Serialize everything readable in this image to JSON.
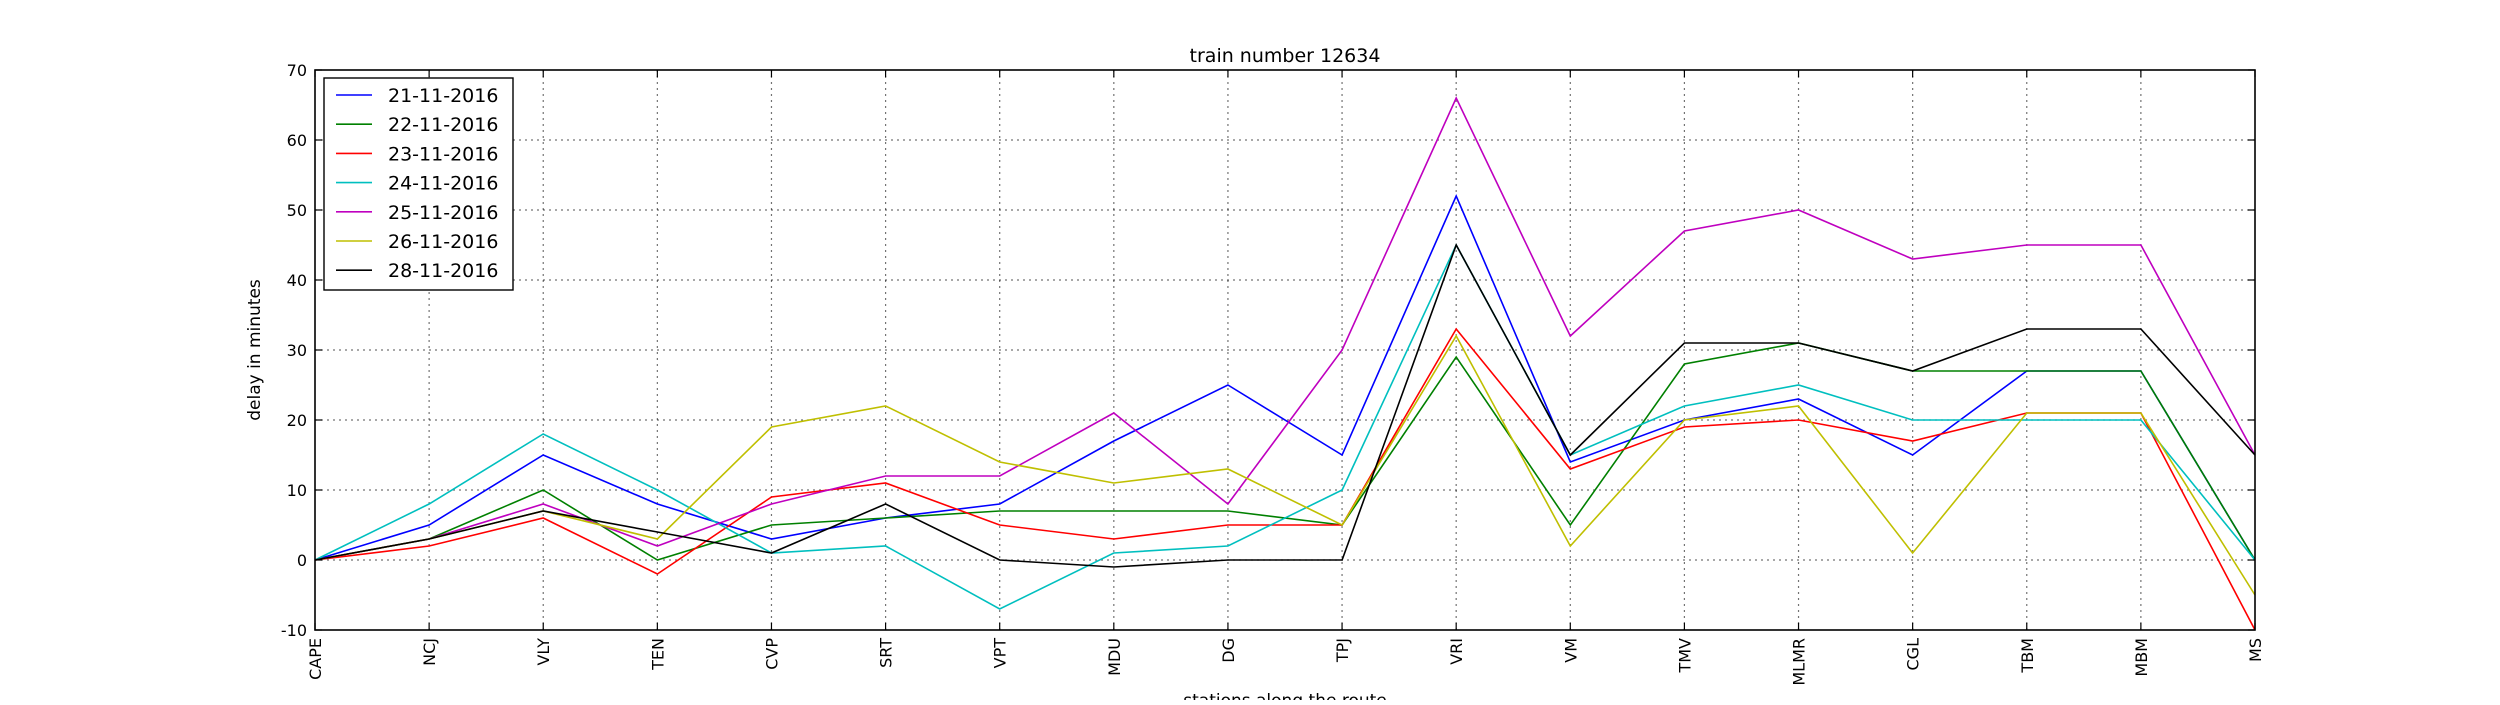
{
  "chart_data": {
    "type": "line",
    "title": "train number 12634",
    "xlabel": "stations along the route",
    "ylabel": "delay in minutes",
    "ylim": [
      -10,
      70
    ],
    "yticks": [
      -10,
      0,
      10,
      20,
      30,
      40,
      50,
      60,
      70
    ],
    "grid": true,
    "legend_position": "top-left",
    "categories": [
      "CAPE",
      "NCJ",
      "VLY",
      "TEN",
      "CVP",
      "SRT",
      "VPT",
      "MDU",
      "DG",
      "TPJ",
      "VRI",
      "VM",
      "TMV",
      "MLMR",
      "CGL",
      "TBM",
      "MBM",
      "MS"
    ],
    "series": [
      {
        "name": "21-11-2016",
        "color": "#0000ff",
        "values": [
          0,
          5,
          15,
          8,
          3,
          6,
          8,
          17,
          25,
          15,
          52,
          14,
          20,
          23,
          15,
          27,
          27,
          0
        ]
      },
      {
        "name": "22-11-2016",
        "color": "#008000",
        "values": [
          0,
          3,
          10,
          0,
          5,
          6,
          7,
          7,
          7,
          5,
          29,
          5,
          28,
          31,
          27,
          27,
          27,
          0
        ]
      },
      {
        "name": "23-11-2016",
        "color": "#ff0000",
        "values": [
          0,
          2,
          6,
          -2,
          9,
          11,
          5,
          3,
          5,
          5,
          33,
          13,
          19,
          20,
          17,
          21,
          21,
          -10
        ]
      },
      {
        "name": "24-11-2016",
        "color": "#00bfbf",
        "values": [
          0,
          8,
          18,
          10,
          1,
          2,
          -7,
          1,
          2,
          10,
          45,
          15,
          22,
          25,
          20,
          20,
          20,
          0
        ]
      },
      {
        "name": "25-11-2016",
        "color": "#bf00bf",
        "values": [
          0,
          3,
          8,
          2,
          8,
          12,
          12,
          21,
          8,
          30,
          66,
          32,
          47,
          50,
          43,
          45,
          45,
          15
        ]
      },
      {
        "name": "26-11-2016",
        "color": "#bfbf00",
        "values": [
          0,
          3,
          7,
          3,
          19,
          22,
          14,
          11,
          13,
          5,
          32,
          2,
          20,
          22,
          1,
          21,
          21,
          -5
        ]
      },
      {
        "name": "28-11-2016",
        "color": "#000000",
        "values": [
          0,
          3,
          7,
          4,
          1,
          8,
          0,
          -1,
          0,
          0,
          45,
          15,
          31,
          31,
          27,
          33,
          33,
          15
        ]
      }
    ]
  }
}
